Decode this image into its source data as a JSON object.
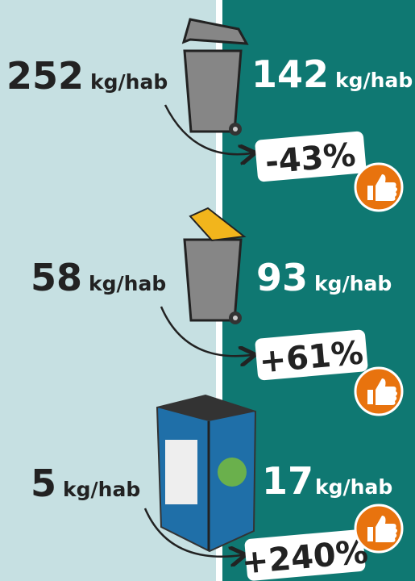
{
  "rows": [
    {
      "before": "252",
      "before_unit": "kg/hab",
      "after": "142",
      "after_unit": "kg/hab",
      "change": "-43%"
    },
    {
      "before": "58",
      "before_unit": "kg/hab",
      "after": "93",
      "after_unit": "kg/hab",
      "change": "+61%"
    },
    {
      "before": "5",
      "before_unit": "kg/hab",
      "after": "17",
      "after_unit": "kg/hab",
      "change": "+240%"
    }
  ]
}
